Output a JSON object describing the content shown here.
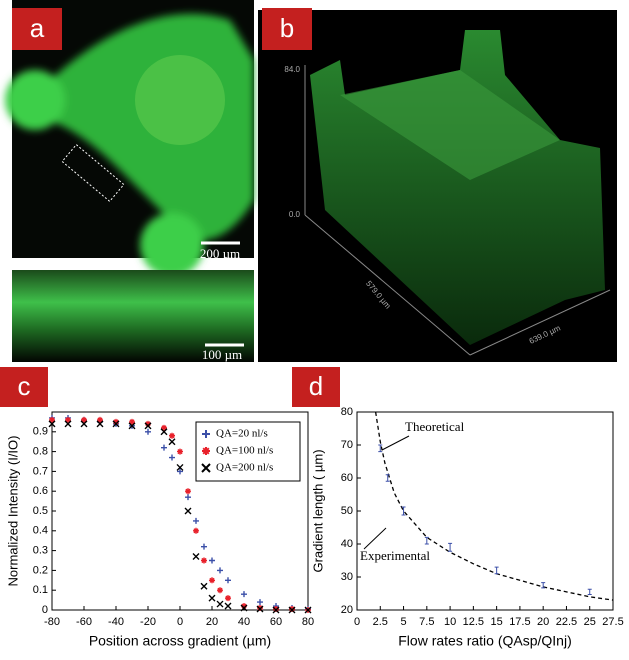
{
  "panels": {
    "a": {
      "label": "a",
      "scale_top": "200 µm",
      "scale_bottom": "100 µm"
    },
    "b": {
      "label": "b",
      "z_top": "84.0",
      "z_bottom": "0.0",
      "y_axis": "579.0 µm",
      "x_axis": "639.0 µm"
    },
    "c": {
      "label": "c"
    },
    "d": {
      "label": "d"
    }
  },
  "chart_data": [
    {
      "type": "scatter",
      "xlabel": "Position across gradient (µm)",
      "ylabel": "Normalized Intensity (I/IO)",
      "xlim": [
        -80,
        80
      ],
      "xticks": [
        -80,
        -60,
        -40,
        -20,
        0,
        20,
        40,
        60,
        80
      ],
      "ylim": [
        0,
        1
      ],
      "yticks": [
        0,
        0.1,
        0.2,
        0.3,
        0.4,
        0.5,
        0.6,
        0.7,
        0.8,
        0.9
      ],
      "legend": "upper right",
      "x": [
        -80,
        -70,
        -60,
        -50,
        -40,
        -30,
        -20,
        -10,
        -5,
        0,
        5,
        10,
        15,
        20,
        25,
        30,
        40,
        50,
        60,
        70,
        80
      ],
      "series": [
        {
          "name": "QA=20 nl/s",
          "color": "#3b4fa8",
          "marker": "+",
          "values": [
            0.97,
            0.97,
            0.96,
            0.95,
            0.94,
            0.93,
            0.9,
            0.82,
            0.77,
            0.7,
            0.57,
            0.45,
            0.32,
            0.25,
            0.2,
            0.15,
            0.08,
            0.04,
            0.02,
            0.01,
            0.005
          ]
        },
        {
          "name": "QA=100 nl/s",
          "color": "#e8202a",
          "marker": "*",
          "values": [
            0.96,
            0.96,
            0.96,
            0.96,
            0.95,
            0.95,
            0.94,
            0.92,
            0.88,
            0.8,
            0.6,
            0.4,
            0.25,
            0.15,
            0.1,
            0.06,
            0.02,
            0.01,
            0.005,
            0.005,
            0
          ]
        },
        {
          "name": "QA=200 nl/s",
          "color": "#000000",
          "marker": "x",
          "values": [
            0.94,
            0.94,
            0.94,
            0.94,
            0.94,
            0.93,
            0.93,
            0.9,
            0.85,
            0.72,
            0.5,
            0.27,
            0.12,
            0.06,
            0.03,
            0.02,
            0.01,
            0.005,
            0,
            0,
            0
          ]
        }
      ]
    },
    {
      "type": "scatter",
      "xlabel": "Flow rates ratio (QAsp/QInj)",
      "ylabel": "Gradient length ( µm)",
      "xlim": [
        0,
        27.5
      ],
      "xticks": [
        0,
        2.5,
        5,
        7.5,
        10,
        12.5,
        15,
        17.5,
        20,
        22.5,
        25,
        27.5
      ],
      "ylim": [
        20,
        80
      ],
      "yticks": [
        20,
        30,
        40,
        50,
        60,
        70,
        80
      ],
      "series": [
        {
          "mode": "line",
          "color": "#000000",
          "x": [
            2,
            2.5,
            3,
            4,
            5,
            7.5,
            10,
            12.5,
            15,
            17.5,
            20,
            22.5,
            25,
            27.5
          ],
          "values": [
            80,
            71,
            64.5,
            55.5,
            50,
            42,
            37.5,
            34,
            31,
            29,
            27,
            25.5,
            24,
            23
          ]
        },
        {
          "mode": "markers",
          "color": "#3b4fa8",
          "x": [
            2.5,
            3.3,
            5,
            7.5,
            10,
            15,
            20,
            25
          ],
          "values": [
            69,
            60,
            50,
            41,
            39,
            32,
            27.5,
            25.5
          ],
          "errors": [
            1,
            1,
            1.2,
            1,
            1.2,
            1,
            0.8,
            0.8
          ]
        }
      ],
      "annotations": [
        "Theoretical",
        "Experimental"
      ]
    }
  ]
}
